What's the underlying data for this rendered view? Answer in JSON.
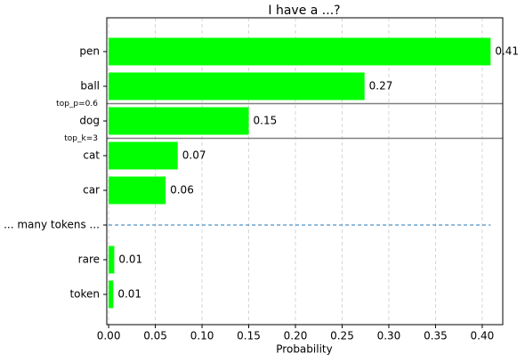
{
  "chart_data": {
    "type": "barh",
    "title": "I have a ...?",
    "xlabel": "Probability",
    "categories": [
      "pen",
      "ball",
      "dog",
      "cat",
      "car",
      "... many tokens ...",
      "rare",
      "token"
    ],
    "values": [
      0.409,
      0.274,
      0.15,
      0.074,
      0.061,
      null,
      0.006,
      0.005
    ],
    "value_labels": [
      "0.41",
      "0.27",
      "0.15",
      "0.07",
      "0.06",
      null,
      "0.01",
      "0.01"
    ],
    "color": "#00ff00",
    "xlim": [
      -0.002,
      0.422
    ],
    "xticks": [
      {
        "value": 0,
        "label": "0.00"
      },
      {
        "value": 0.05,
        "label": "0.05"
      },
      {
        "value": 0.1,
        "label": "0.10"
      },
      {
        "value": 0.15,
        "label": "0.15"
      },
      {
        "value": 0.2,
        "label": "0.20"
      },
      {
        "value": 0.25,
        "label": "0.25"
      },
      {
        "value": 0.3,
        "label": "0.30"
      },
      {
        "value": 0.35,
        "label": "0.35"
      },
      {
        "value": 0.4,
        "label": "0.40"
      }
    ],
    "grid": true,
    "cutoffs": [
      "top_p=0.6",
      "top_k=3"
    ]
  }
}
